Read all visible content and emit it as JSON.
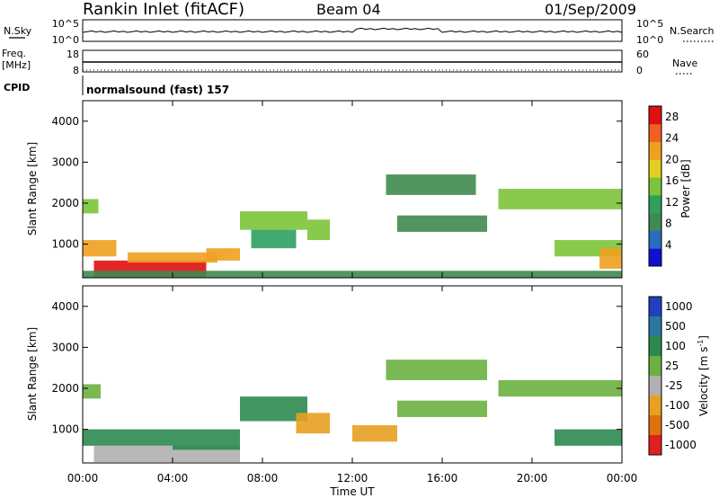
{
  "header": {
    "title": "Rankin Inlet (fitACF)",
    "beam": "Beam 04",
    "date": "01/Sep/2009"
  },
  "noise_panel": {
    "left_label": "N.Sky",
    "left_ticks": [
      "10^5",
      "10^0"
    ],
    "right_label": "N.Search",
    "right_ticks": [
      "10^5",
      "10^0"
    ]
  },
  "freq_panel": {
    "left_label_line1": "Freq.",
    "left_label_line2": "[MHz]",
    "left_ticks": [
      "18",
      "8"
    ],
    "right_label": "Nave",
    "right_ticks": [
      "60",
      "0"
    ]
  },
  "cpid": {
    "label": "CPID",
    "text": "normalsound (fast) 157"
  },
  "chart_data": [
    {
      "type": "heatmap",
      "name": "power",
      "ylabel": "Slant Range [km]",
      "ylim": [
        180,
        4500
      ],
      "yticks": [
        "1000",
        "2000",
        "3000",
        "4000"
      ],
      "yticks_values": [
        1000,
        2000,
        3000,
        4000
      ],
      "colorbar_label": "Power [dB]",
      "colorbar_ticks": [
        "28",
        "24",
        "20",
        "16",
        "12",
        "8",
        "4"
      ],
      "colorbar_values": [
        28,
        24,
        20,
        16,
        12,
        8,
        4
      ],
      "colorbar_range": [
        0,
        30
      ],
      "regions": [
        {
          "t0": 0.0,
          "t1": 0.7,
          "r0": 1750,
          "r1": 2100,
          "v": 14
        },
        {
          "t0": 0.0,
          "t1": 1.5,
          "r0": 700,
          "r1": 1100,
          "v": 22
        },
        {
          "t0": 0.5,
          "t1": 5.5,
          "r0": 200,
          "r1": 600,
          "v": 29
        },
        {
          "t0": 2.0,
          "t1": 6.0,
          "r0": 550,
          "r1": 800,
          "v": 24
        },
        {
          "t0": 5.5,
          "t1": 7.0,
          "r0": 600,
          "r1": 900,
          "v": 22
        },
        {
          "t0": 7.0,
          "t1": 10.0,
          "r0": 1350,
          "r1": 1800,
          "v": 15
        },
        {
          "t0": 7.5,
          "t1": 9.5,
          "r0": 900,
          "r1": 1350,
          "v": 12
        },
        {
          "t0": 10.0,
          "t1": 11.0,
          "r0": 1100,
          "r1": 1600,
          "v": 14
        },
        {
          "t0": 13.5,
          "t1": 17.5,
          "r0": 2200,
          "r1": 2700,
          "v": 7
        },
        {
          "t0": 14.0,
          "t1": 18.0,
          "r0": 1300,
          "r1": 1700,
          "v": 8
        },
        {
          "t0": 18.5,
          "t1": 24.0,
          "r0": 1850,
          "r1": 2350,
          "v": 14
        },
        {
          "t0": 21.0,
          "t1": 24.0,
          "r0": 700,
          "r1": 1100,
          "v": 16
        },
        {
          "t0": 23.0,
          "t1": 24.0,
          "r0": 400,
          "r1": 900,
          "v": 24
        },
        {
          "t0": 0.0,
          "t1": 24.0,
          "r0": 180,
          "r1": 350,
          "v": 6
        }
      ]
    },
    {
      "type": "heatmap",
      "name": "velocity",
      "ylabel": "Slant Range [km]",
      "ylim": [
        180,
        4500
      ],
      "yticks": [
        "1000",
        "2000",
        "3000",
        "4000"
      ],
      "yticks_values": [
        1000,
        2000,
        3000,
        4000
      ],
      "colorbar_label": "Velocity [m s",
      "colorbar_label_sup": "-1",
      "colorbar_label_end": "]",
      "colorbar_ticks": [
        "1000",
        "500",
        "100",
        "25",
        "-25",
        "-100",
        "-500",
        "-1000"
      ],
      "colorbar_levels": [
        "1000",
        "500",
        "100",
        "25",
        "-25",
        "-100",
        "-500",
        "-1000"
      ],
      "regions": [
        {
          "t0": 0.0,
          "t1": 0.8,
          "r0": 1750,
          "r1": 2100,
          "v": 0
        },
        {
          "t0": 0.0,
          "t1": 4.0,
          "r0": 600,
          "r1": 1000,
          "v": 100
        },
        {
          "t0": 0.5,
          "t1": 7.0,
          "r0": 200,
          "r1": 600,
          "v": -50
        },
        {
          "t0": 4.0,
          "t1": 7.0,
          "r0": 500,
          "r1": 1000,
          "v": 80
        },
        {
          "t0": 7.0,
          "t1": 10.0,
          "r0": 1200,
          "r1": 1800,
          "v": 90
        },
        {
          "t0": 9.5,
          "t1": 11.0,
          "r0": 900,
          "r1": 1400,
          "v": -80
        },
        {
          "t0": 12.0,
          "t1": 14.0,
          "r0": 700,
          "r1": 1100,
          "v": -70
        },
        {
          "t0": 13.5,
          "t1": 18.0,
          "r0": 2200,
          "r1": 2700,
          "v": 0
        },
        {
          "t0": 14.0,
          "t1": 18.0,
          "r0": 1300,
          "r1": 1700,
          "v": 0
        },
        {
          "t0": 18.5,
          "t1": 24.0,
          "r0": 1800,
          "r1": 2200,
          "v": 0
        },
        {
          "t0": 21.0,
          "t1": 24.0,
          "r0": 600,
          "r1": 1000,
          "v": 70
        }
      ]
    }
  ],
  "xaxis": {
    "label": "Time UT",
    "ticks": [
      "00:00",
      "04:00",
      "08:00",
      "12:00",
      "16:00",
      "20:00",
      "00:00"
    ],
    "tick_hours": [
      0,
      4,
      8,
      12,
      16,
      20,
      24
    ],
    "range_hours": [
      0,
      24
    ]
  },
  "colors": {
    "power_scale": [
      "#1010d0",
      "#2a6cc0",
      "#3f8a50",
      "#2ea060",
      "#7cc43a",
      "#e0d020",
      "#f0a020",
      "#f06020",
      "#e01010"
    ],
    "velocity_scale": [
      "#2040c0",
      "#2a78a0",
      "#2c8a50",
      "#6cb040",
      "#b0b0b0",
      "#e8a020",
      "#e07010",
      "#e02020"
    ]
  }
}
